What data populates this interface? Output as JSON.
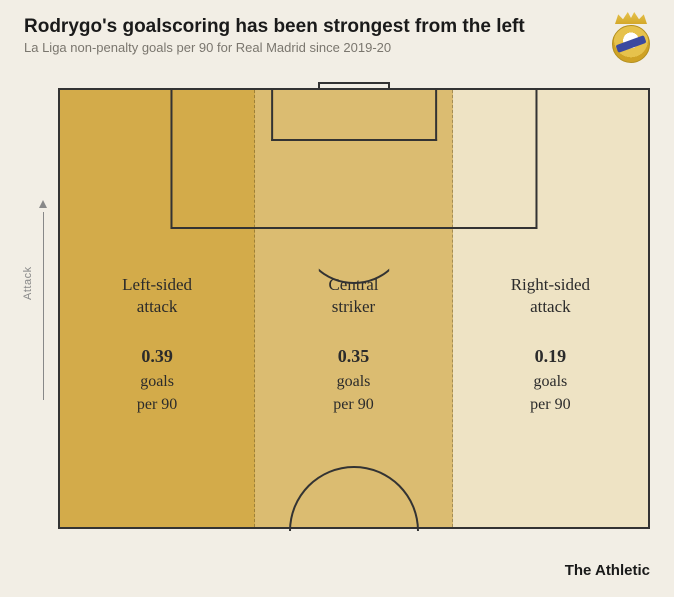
{
  "header": {
    "title": "Rodrygo's goalscoring has been strongest from the left",
    "subtitle": "La Liga non-penalty goals per 90 for Real Madrid since 2019-20",
    "title_fontsize": 19,
    "subtitle_fontsize": 13,
    "title_color": "#1a1a1a",
    "subtitle_color": "#7a766e"
  },
  "logo": {
    "name": "real-madrid-crest"
  },
  "background_color": "#f2eee5",
  "pitch": {
    "type": "infographic",
    "border_color": "#333333",
    "line_color": "#333333",
    "dash_color": "rgba(0,0,0,0.25)",
    "zones": [
      {
        "key": "left",
        "label_line1": "Left-sided",
        "label_line2": "attack",
        "value": "0.39",
        "stat_line1": "goals",
        "stat_line2": "per 90",
        "width_pct": 33.2,
        "fill_color": "#d3ab4a"
      },
      {
        "key": "center",
        "label_line1": "Central",
        "label_line2": "striker",
        "value": "0.35",
        "stat_line1": "goals",
        "stat_line2": "per 90",
        "width_pct": 33.6,
        "fill_color": "#dbbc71"
      },
      {
        "key": "right",
        "label_line1": "Right-sided",
        "label_line2": "attack",
        "value": "0.19",
        "stat_line1": "goals",
        "stat_line2": "per 90",
        "width_pct": 33.2,
        "fill_color": "#eee3c4"
      }
    ],
    "label_fontsize": 17,
    "stat_fontsize": 16,
    "value_fontsize": 18,
    "text_color": "#2b2b2b"
  },
  "axis": {
    "label": "Attack",
    "color": "#888888",
    "fontsize": 11
  },
  "credit": {
    "text": "The Athletic",
    "fontsize": 15,
    "color": "#1a1a1a"
  }
}
